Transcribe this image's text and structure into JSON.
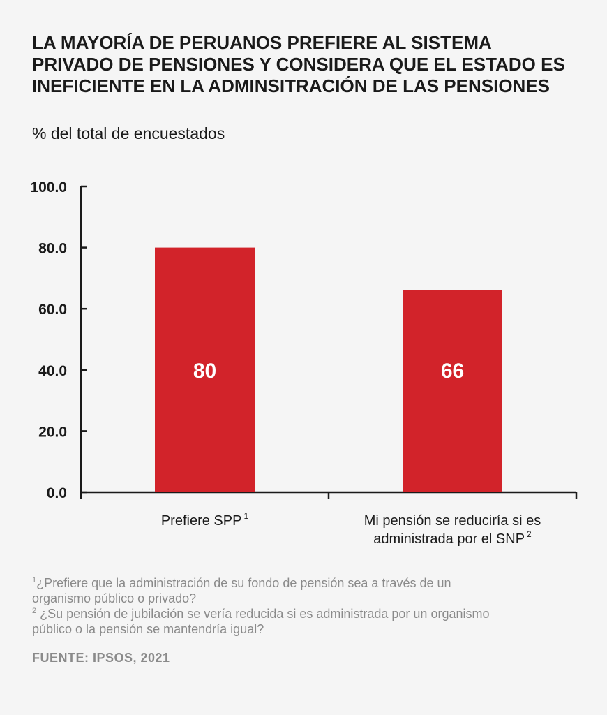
{
  "title_lines": [
    "LA MAYORÍA DE PERUANOS PREFIERE AL SISTEMA",
    "PRIVADO DE PENSIONES Y CONSIDERA QUE EL ESTADO ES",
    "INEFICIENTE EN LA ADMINSITRACIÓN DE LAS PENSIONES"
  ],
  "subtitle": "% del total de encuestados",
  "chart_data": {
    "type": "bar",
    "title": "LA MAYORÍA DE PERUANOS PREFIERE AL SISTEMA PRIVADO DE PENSIONES Y CONSIDERA QUE EL ESTADO ES INEFICIENTE EN LA ADMINSITRACIÓN DE LAS PENSIONES",
    "ylabel": "% del total de encuestados",
    "xlabel": "",
    "ylim": [
      0,
      100
    ],
    "yticks": [
      "0.0",
      "20.0",
      "40.0",
      "60.0",
      "80.0",
      "100.0"
    ],
    "categories": [
      {
        "lines": [
          "Prefiere SPP"
        ],
        "sup": "1"
      },
      {
        "lines": [
          "Mi pensión se reduciría si es",
          "administrada por el SNP"
        ],
        "sup": "2"
      }
    ],
    "values": [
      80,
      66
    ],
    "data_labels": [
      "80",
      "66"
    ],
    "bar_color": "#d2232a",
    "label_color": "#ffffff"
  },
  "footnotes": [
    {
      "sup": "1",
      "text": "¿Prefiere que la administración de su fondo de pensión sea a través de un",
      "text2": "organismo público o privado?"
    },
    {
      "sup": "2",
      "text": " ¿Su pensión de jubilación se vería reducida si es administrada por un organismo",
      "text2": "público o la pensión se mantendría igual?"
    }
  ],
  "source": "FUENTE: IPSOS, 2021"
}
